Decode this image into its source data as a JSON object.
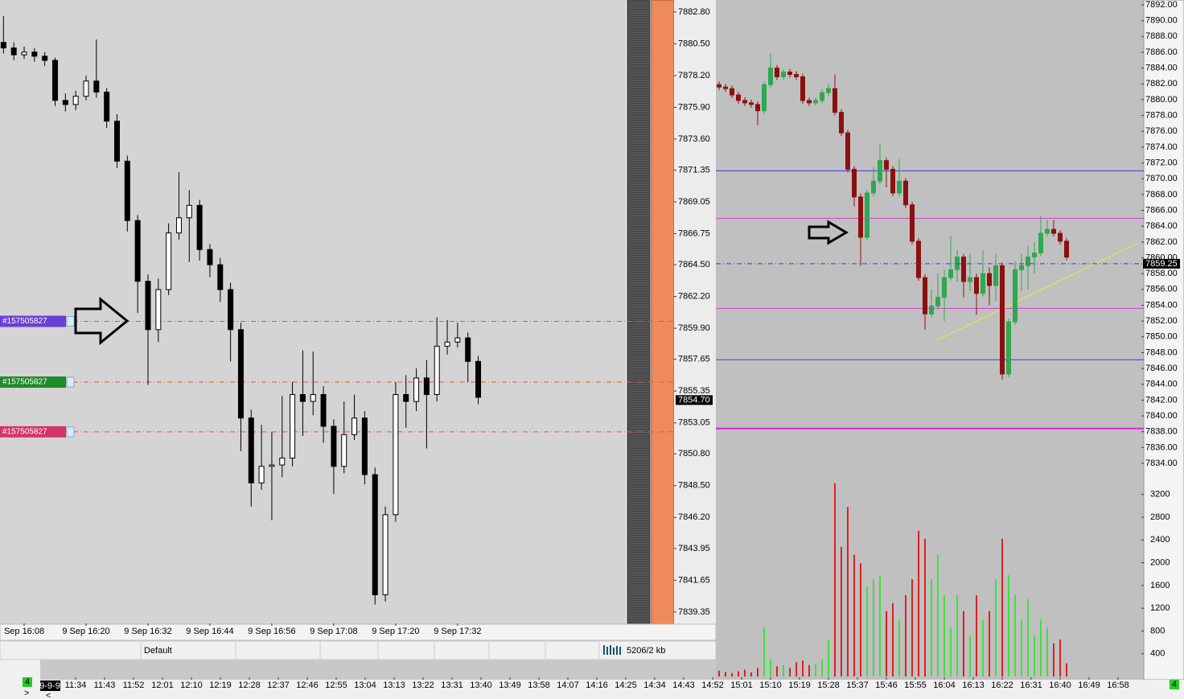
{
  "chart_data": [
    {
      "type": "candlestick",
      "xlim": [
        -0.34,
        60.3
      ],
      "ylim": [
        7838.47,
        7883.67
      ],
      "xticks": [
        {
          "value": 2,
          "label": "Sep 16:08"
        },
        {
          "value": 8,
          "label": "9 Sep 16:20"
        },
        {
          "value": 14,
          "label": "9 Sep 16:32"
        },
        {
          "value": 20,
          "label": "9 Sep 16:44"
        },
        {
          "value": 26,
          "label": "9 Sep 16:56"
        },
        {
          "value": 32,
          "label": "9 Sep 17:08"
        },
        {
          "value": 38,
          "label": "9 Sep 17:20"
        },
        {
          "value": 44,
          "label": "9 Sep 17:32"
        }
      ],
      "yticks": [
        {
          "value": 7882.8,
          "label": "7882.80"
        },
        {
          "value": 7880.5,
          "label": "7880.50"
        },
        {
          "value": 7878.2,
          "label": "7878.20"
        },
        {
          "value": 7875.9,
          "label": "7875.90"
        },
        {
          "value": 7873.6,
          "label": "7873.60"
        },
        7871.35,
        7869.05,
        7866.75,
        {
          "value": 7864.5,
          "label": "7864.50"
        },
        {
          "value": 7862.2,
          "label": "7862.20"
        },
        {
          "value": 7859.9,
          "label": "7859.90"
        },
        7857.65,
        7855.35,
        7853.05,
        {
          "value": 7850.8,
          "label": "7850.80"
        },
        {
          "value": 7848.5,
          "label": "7848.50"
        },
        {
          "value": 7846.2,
          "label": "7846.20"
        },
        7843.95,
        7841.65,
        7839.35
      ],
      "open": [
        7880.6,
        7880.2,
        7879.7,
        7879.9,
        7879.6,
        7879.3,
        7876.4,
        7876.1,
        7876.7,
        7877.8,
        7877.0,
        7874.9,
        7872.0,
        7867.7,
        7863.3,
        7859.8,
        7862.7,
        7866.8,
        7867.9,
        7868.8,
        7865.6,
        7864.5,
        7862.7,
        7859.8,
        7853.4,
        7848.7,
        7849.9,
        7850.0,
        7850.5,
        7855.1,
        7854.6,
        7855.1,
        7852.8,
        7849.9,
        7852.2,
        7853.4,
        7849.3,
        7840.6,
        7846.4,
        7855.1,
        7854.6,
        7856.3,
        7855.1,
        7858.6,
        7858.9,
        7859.2,
        7857.5
      ],
      "high": [
        7882.5,
        7880.6,
        7880.3,
        7880.2,
        7879.9,
        7879.5,
        7876.9,
        7877.1,
        7878.2,
        7880.8,
        7877.3,
        7875.4,
        7872.4,
        7868.1,
        7863.8,
        7863.5,
        7867.5,
        7871.2,
        7869.9,
        7869.2,
        7866.0,
        7865.0,
        7863.2,
        7860.3,
        7854.0,
        7852.9,
        7852.4,
        7855.0,
        7856.0,
        7858.3,
        7858.2,
        7855.7,
        7853.3,
        7854.6,
        7855.1,
        7853.9,
        7849.8,
        7847.0,
        7856.0,
        7856.5,
        7857.0,
        7857.6,
        7860.7,
        7860.5,
        7860.3,
        7859.6,
        7857.9
      ],
      "low": [
        7879.8,
        7879.3,
        7879.4,
        7879.2,
        7878.9,
        7876.0,
        7875.6,
        7875.7,
        7876.4,
        7876.6,
        7874.4,
        7871.5,
        7866.9,
        7861.0,
        7855.8,
        7858.9,
        7862.3,
        7866.3,
        7864.7,
        7864.8,
        7863.6,
        7861.8,
        7857.5,
        7851.0,
        7847.0,
        7848.2,
        7846.0,
        7849.1,
        7849.9,
        7852.1,
        7853.6,
        7851.6,
        7847.9,
        7849.4,
        7851.8,
        7848.6,
        7839.9,
        7840.1,
        7845.9,
        7852.7,
        7853.9,
        7851.2,
        7854.6,
        7858.0,
        7858.5,
        7856.0,
        7854.4
      ],
      "close": [
        7880.2,
        7879.7,
        7879.9,
        7879.6,
        7879.3,
        7876.4,
        7876.1,
        7876.7,
        7877.8,
        7877.0,
        7874.9,
        7872.0,
        7867.7,
        7863.3,
        7859.8,
        7862.7,
        7866.8,
        7867.9,
        7868.8,
        7865.6,
        7864.5,
        7862.7,
        7859.8,
        7853.4,
        7848.7,
        7849.9,
        7850.0,
        7850.5,
        7855.1,
        7854.6,
        7855.1,
        7852.8,
        7849.9,
        7852.2,
        7853.4,
        7849.3,
        7840.6,
        7846.4,
        7855.1,
        7854.6,
        7856.3,
        7855.1,
        7858.6,
        7858.9,
        7859.2,
        7857.5,
        7854.9
      ],
      "up_color": "#ffffff",
      "down_color": "#000000",
      "wick_color": "#000000",
      "current_price": {
        "value": 7854.7,
        "label": "7854.70"
      },
      "orders": [
        {
          "label": "#157505827",
          "price": 7860.4,
          "color": "#6a3fd6"
        },
        {
          "label": "#157505827",
          "price": 7856.0,
          "color": "#1f8a2a"
        },
        {
          "label": "#157505827",
          "price": 7852.4,
          "color": "#d6336c"
        }
      ]
    },
    {
      "type": "candlestick",
      "xlim": [
        -105.5,
        66
      ],
      "ylim": [
        7832.58,
        7892.61
      ],
      "y2lim": [
        0,
        3550
      ],
      "xticks": [
        {
          "value": -100,
          "label": "11:34"
        },
        {
          "value": -95.5,
          "label": "11:43"
        },
        {
          "value": -91,
          "label": "11:52"
        },
        {
          "value": -86.5,
          "label": "12:01"
        },
        {
          "value": -82,
          "label": "12:10"
        },
        {
          "value": -77.5,
          "label": "12:19"
        },
        {
          "value": -73,
          "label": "12:28"
        },
        {
          "value": -68.5,
          "label": "12:37"
        },
        {
          "value": -64,
          "label": "12:46"
        },
        {
          "value": -59.5,
          "label": "12:55"
        },
        {
          "value": -55,
          "label": "13:04"
        },
        {
          "value": -50.5,
          "label": "13:13"
        },
        {
          "value": -46,
          "label": "13:22"
        },
        {
          "value": -41.5,
          "label": "13:31"
        },
        {
          "value": -37,
          "label": "13:40"
        },
        {
          "value": -32.5,
          "label": "13:49"
        },
        {
          "value": -28,
          "label": "13:58"
        },
        {
          "value": -23.5,
          "label": "14:07"
        },
        {
          "value": -19,
          "label": "14:16"
        },
        {
          "value": -14.5,
          "label": "14:25"
        },
        {
          "value": -10,
          "label": "14:34"
        },
        {
          "value": -5.5,
          "label": "14:43"
        },
        {
          "value": -1,
          "label": "14:52"
        },
        {
          "value": 3.5,
          "label": "15:01"
        },
        {
          "value": 8,
          "label": "15:10"
        },
        {
          "value": 12.5,
          "label": "15:19"
        },
        {
          "value": 17,
          "label": "15:28"
        },
        {
          "value": 21.5,
          "label": "15:37"
        },
        {
          "value": 26,
          "label": "15:46"
        },
        {
          "value": 30.5,
          "label": "15:55"
        },
        {
          "value": 35,
          "label": "16:04"
        },
        {
          "value": 39.5,
          "label": "16:13"
        },
        {
          "value": 44,
          "label": "16:22"
        },
        {
          "value": 48.5,
          "label": "16:31"
        },
        {
          "value": 53,
          "label": "16:40"
        },
        {
          "value": 57.5,
          "label": "16:49"
        },
        {
          "value": 62,
          "label": "16:58"
        }
      ],
      "yticks": [
        {
          "value": 7892,
          "label": "7892.00"
        },
        {
          "value": 7890,
          "label": "7890.00"
        },
        {
          "value": 7888,
          "label": "7888.00"
        },
        {
          "value": 7886,
          "label": "7886.00"
        },
        {
          "value": 7884,
          "label": "7884.00"
        },
        {
          "value": 7882,
          "label": "7882.00"
        },
        {
          "value": 7880,
          "label": "7880.00"
        },
        {
          "value": 7878,
          "label": "7878.00"
        },
        {
          "value": 7876,
          "label": "7876.00"
        },
        {
          "value": 7874,
          "label": "7874.00"
        },
        {
          "value": 7872,
          "label": "7872.00"
        },
        {
          "value": 7870,
          "label": "7870.00"
        },
        {
          "value": 7868,
          "label": "7868.00"
        },
        {
          "value": 7866,
          "label": "7866.00"
        },
        {
          "value": 7864,
          "label": "7864.00"
        },
        {
          "value": 7862,
          "label": "7862.00"
        },
        {
          "value": 7860,
          "label": "7860.00"
        },
        {
          "value": 7858,
          "label": "7858.00"
        },
        {
          "value": 7856,
          "label": "7856.00"
        },
        {
          "value": 7854,
          "label": "7854.00"
        },
        {
          "value": 7852,
          "label": "7852.00"
        },
        {
          "value": 7850,
          "label": "7850.00"
        },
        {
          "value": 7848,
          "label": "7848.00"
        },
        {
          "value": 7846,
          "label": "7846.00"
        },
        {
          "value": 7844,
          "label": "7844.00"
        },
        {
          "value": 7842,
          "label": "7842.00"
        },
        {
          "value": 7840,
          "label": "7840.00"
        },
        {
          "value": 7838,
          "label": "7838.00"
        },
        {
          "value": 7836,
          "label": "7836.00"
        },
        {
          "value": 7834,
          "label": "7834.00"
        }
      ],
      "y2ticks": [
        3200,
        2800,
        2400,
        2000,
        1600,
        1200,
        800,
        400
      ],
      "open": [
        7881.9,
        7881.6,
        7881.4,
        7880.6,
        7879.9,
        7879.6,
        7879.4,
        7878.6,
        7881.9,
        7884.0,
        7882.9,
        7883.5,
        7883.2,
        7882.9,
        7879.9,
        7879.6,
        7879.9,
        7880.9,
        7881.4,
        7878.4,
        7875.8,
        7871.2,
        7867.7,
        7862.6,
        7868.2,
        7869.7,
        7872.3,
        7871.2,
        7868.2,
        7869.7,
        7866.7,
        7862.1,
        7857.5,
        7852.9,
        7853.9,
        7855.0,
        7857.5,
        7858.5,
        7860.1,
        7857.0,
        7857.5,
        7855.5,
        7858.0,
        7856.5,
        7859.0,
        7845.3,
        7851.9,
        7858.5,
        7859.0,
        7860.1,
        7860.6,
        7863.1,
        7863.6,
        7863.1,
        7862.1
      ],
      "high": [
        7882.3,
        7882.0,
        7881.8,
        7881.0,
        7880.3,
        7880.0,
        7879.8,
        7882.3,
        7885.9,
        7884.4,
        7883.9,
        7883.9,
        7883.6,
        7883.3,
        7880.3,
        7880.3,
        7881.3,
        7882.0,
        7883.2,
        7878.8,
        7876.2,
        7871.6,
        7868.1,
        7868.6,
        7871.5,
        7874.5,
        7872.7,
        7871.6,
        7872.5,
        7870.1,
        7867.1,
        7862.5,
        7857.9,
        7856.0,
        7858.0,
        7858.5,
        7862.8,
        7861.0,
        7860.5,
        7860.5,
        7858.0,
        7861.0,
        7858.8,
        7860.5,
        7859.4,
        7852.3,
        7859.5,
        7860.5,
        7861.5,
        7862.0,
        7865.3,
        7864.8,
        7864.8,
        7863.5,
        7862.5
      ],
      "low": [
        7881.2,
        7881.0,
        7880.2,
        7879.5,
        7879.2,
        7879.0,
        7876.8,
        7878.2,
        7881.5,
        7882.5,
        7882.5,
        7882.8,
        7882.5,
        7879.5,
        7879.2,
        7879.2,
        7879.5,
        7880.5,
        7878.0,
        7875.4,
        7870.8,
        7866.5,
        7859.0,
        7862.2,
        7867.8,
        7869.3,
        7868.9,
        7867.8,
        7867.8,
        7866.3,
        7861.7,
        7857.1,
        7850.9,
        7852.5,
        7853.5,
        7852.0,
        7857.1,
        7857.0,
        7855.0,
        7855.8,
        7852.8,
        7855.1,
        7854.0,
        7854.5,
        7844.6,
        7844.9,
        7851.5,
        7855.8,
        7856.0,
        7858.0,
        7860.2,
        7862.7,
        7862.7,
        7861.7,
        7859.7
      ],
      "close": [
        7881.6,
        7881.4,
        7880.6,
        7879.9,
        7879.6,
        7879.4,
        7878.6,
        7881.9,
        7884.0,
        7882.9,
        7883.5,
        7883.2,
        7882.9,
        7879.9,
        7879.6,
        7879.9,
        7880.9,
        7881.4,
        7878.4,
        7875.8,
        7871.2,
        7867.7,
        7862.6,
        7868.2,
        7869.7,
        7872.3,
        7871.2,
        7868.2,
        7869.7,
        7866.7,
        7862.1,
        7857.5,
        7852.9,
        7853.9,
        7855.0,
        7857.5,
        7858.5,
        7860.1,
        7857.0,
        7857.5,
        7855.5,
        7858.0,
        7856.5,
        7859.0,
        7845.3,
        7851.9,
        7858.5,
        7859.0,
        7860.1,
        7860.6,
        7863.1,
        7863.6,
        7863.1,
        7862.1,
        7860.1
      ],
      "volume": [
        100,
        80,
        60,
        90,
        120,
        70,
        150,
        860,
        300,
        180,
        200,
        150,
        250,
        280,
        200,
        220,
        300,
        650,
        3400,
        2280,
        2980,
        2140,
        1990,
        1570,
        1710,
        1780,
        1150,
        1290,
        1000,
        1430,
        1710,
        2560,
        2420,
        1710,
        2140,
        1430,
        860,
        1430,
        1150,
        720,
        1430,
        1000,
        1150,
        1710,
        2420,
        1780,
        1430,
        1000,
        1360,
        720,
        1000,
        860,
        580,
        650,
        230
      ],
      "up_color": "#2fa84f",
      "down_color": "#8b1010",
      "volume_up_color": "#40e040",
      "volume_down_color": "#e02020",
      "current_price": 7859.25,
      "levels": [
        {
          "value": 7871.0,
          "color": "#3a3adf"
        },
        {
          "value": 7865.0,
          "color": "#d040d0"
        },
        {
          "value": 7853.6,
          "color": "#d040d0"
        },
        {
          "value": 7847.1,
          "color": "#3a3adf"
        },
        {
          "value": 7838.4,
          "color": "#e020e0"
        }
      ]
    }
  ],
  "status_bar": {
    "profile": "Default",
    "memory": "5206/2 kb"
  },
  "time_axis_start": "9-9-9",
  "badges": [
    "4",
    "4"
  ],
  "nav": [
    "<",
    ">"
  ]
}
